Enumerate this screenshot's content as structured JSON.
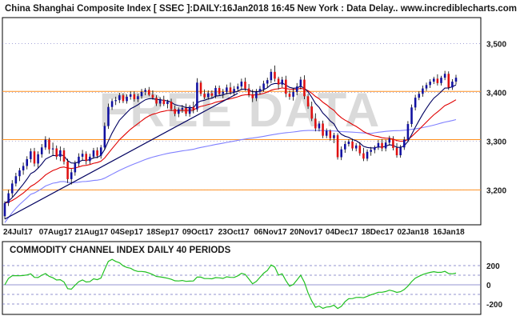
{
  "header": {
    "title": "China Shanghai Composite Index [ SSEC ]:DAILY:16Jan2018 16:45 New York : Data Delay..",
    "site": "www.incrediblecharts.com"
  },
  "watermark": "FREE DATA",
  "colors": {
    "up": "#1010a0",
    "down": "#e01010",
    "ma_fast": "#000060",
    "ma_mid": "#e00000",
    "ma_long": "#8080ff",
    "trendline": "#000060",
    "horizontal_lines": "#ff9020",
    "cci": "#20c020",
    "grid": "#7070c0"
  },
  "chart_data": [
    {
      "type": "candlestick",
      "title": "China Shanghai Composite Index [ SSEC ]:DAILY:16Jan2018 16:45 New York : Data Delay..",
      "x_tick_labels": [
        "24Jul17",
        "07Aug17",
        "21Aug17",
        "04Sep17",
        "18Sep17",
        "09Oct17",
        "23Oct17",
        "06Nov17",
        "20Nov17",
        "04Dec17",
        "18Dec17",
        "02Jan18",
        "16Jan18"
      ],
      "y_ticks": [
        3200,
        3300,
        3400,
        3500
      ],
      "y_tick_labels": [
        "3,200",
        "3,300",
        "3,400",
        "3,500"
      ],
      "ylim": [
        3130,
        3550
      ],
      "horizontal_lines": [
        3200,
        3303,
        3402
      ],
      "trendline": {
        "from": {
          "bar": 0,
          "value": 3140
        },
        "to": {
          "bar": 63,
          "value": 3398
        }
      },
      "moving_averages": [
        "fast",
        "mid",
        "long"
      ],
      "bar_count": 123,
      "ohlc": [
        [
          3146,
          3177,
          3140,
          3173
        ],
        [
          3173,
          3200,
          3167,
          3193
        ],
        [
          3193,
          3220,
          3186,
          3213
        ],
        [
          3213,
          3235,
          3207,
          3228
        ],
        [
          3228,
          3245,
          3218,
          3240
        ],
        [
          3240,
          3256,
          3231,
          3249
        ],
        [
          3249,
          3269,
          3242,
          3263
        ],
        [
          3263,
          3285,
          3256,
          3279
        ],
        [
          3279,
          3286,
          3248,
          3254
        ],
        [
          3254,
          3279,
          3245,
          3273
        ],
        [
          3273,
          3294,
          3266,
          3287
        ],
        [
          3287,
          3310,
          3282,
          3303
        ],
        [
          3303,
          3307,
          3274,
          3283
        ],
        [
          3283,
          3297,
          3270,
          3285
        ],
        [
          3285,
          3291,
          3262,
          3268
        ],
        [
          3268,
          3289,
          3259,
          3281
        ],
        [
          3281,
          3286,
          3252,
          3258
        ],
        [
          3258,
          3264,
          3214,
          3222
        ],
        [
          3222,
          3243,
          3211,
          3236
        ],
        [
          3236,
          3260,
          3229,
          3254
        ],
        [
          3254,
          3275,
          3248,
          3268
        ],
        [
          3268,
          3282,
          3260,
          3274
        ],
        [
          3274,
          3279,
          3252,
          3259
        ],
        [
          3259,
          3274,
          3253,
          3268
        ],
        [
          3268,
          3286,
          3264,
          3281
        ],
        [
          3281,
          3287,
          3265,
          3270
        ],
        [
          3270,
          3292,
          3264,
          3287
        ],
        [
          3287,
          3338,
          3282,
          3331
        ],
        [
          3331,
          3377,
          3325,
          3370
        ],
        [
          3370,
          3387,
          3364,
          3382
        ],
        [
          3382,
          3391,
          3374,
          3384
        ],
        [
          3384,
          3399,
          3378,
          3394
        ],
        [
          3394,
          3398,
          3378,
          3382
        ],
        [
          3382,
          3396,
          3377,
          3391
        ],
        [
          3391,
          3402,
          3385,
          3396
        ],
        [
          3396,
          3402,
          3381,
          3386
        ],
        [
          3386,
          3397,
          3380,
          3392
        ],
        [
          3392,
          3407,
          3387,
          3401
        ],
        [
          3401,
          3409,
          3394,
          3405
        ],
        [
          3405,
          3411,
          3392,
          3395
        ],
        [
          3395,
          3404,
          3385,
          3389
        ],
        [
          3389,
          3394,
          3372,
          3377
        ],
        [
          3377,
          3390,
          3371,
          3385
        ],
        [
          3385,
          3393,
          3372,
          3376
        ],
        [
          3376,
          3385,
          3367,
          3381
        ],
        [
          3381,
          3387,
          3362,
          3366
        ],
        [
          3366,
          3373,
          3351,
          3356
        ],
        [
          3356,
          3369,
          3349,
          3365
        ],
        [
          3365,
          3374,
          3358,
          3368
        ],
        [
          3368,
          3377,
          3351,
          3356
        ],
        [
          3356,
          3374,
          3350,
          3370
        ],
        [
          3370,
          3381,
          3357,
          3365
        ],
        [
          3365,
          3429,
          3360,
          3420
        ],
        [
          3420,
          3424,
          3392,
          3397
        ],
        [
          3397,
          3406,
          3386,
          3390
        ],
        [
          3390,
          3404,
          3385,
          3398
        ],
        [
          3398,
          3404,
          3388,
          3393
        ],
        [
          3393,
          3414,
          3388,
          3409
        ],
        [
          3409,
          3414,
          3394,
          3397
        ],
        [
          3397,
          3407,
          3388,
          3401
        ],
        [
          3401,
          3416,
          3396,
          3410
        ],
        [
          3410,
          3420,
          3395,
          3400
        ],
        [
          3400,
          3413,
          3393,
          3407
        ],
        [
          3407,
          3418,
          3401,
          3412
        ],
        [
          3412,
          3428,
          3405,
          3422
        ],
        [
          3422,
          3430,
          3403,
          3408
        ],
        [
          3408,
          3417,
          3390,
          3396
        ],
        [
          3396,
          3406,
          3380,
          3388
        ],
        [
          3388,
          3407,
          3382,
          3401
        ],
        [
          3401,
          3413,
          3396,
          3407
        ],
        [
          3407,
          3424,
          3401,
          3418
        ],
        [
          3418,
          3430,
          3410,
          3425
        ],
        [
          3425,
          3448,
          3419,
          3442
        ],
        [
          3442,
          3455,
          3422,
          3428
        ],
        [
          3428,
          3432,
          3406,
          3416
        ],
        [
          3416,
          3432,
          3410,
          3426
        ],
        [
          3426,
          3434,
          3390,
          3397
        ],
        [
          3397,
          3404,
          3385,
          3391
        ],
        [
          3391,
          3408,
          3383,
          3401
        ],
        [
          3401,
          3419,
          3394,
          3412
        ],
        [
          3412,
          3432,
          3406,
          3426
        ],
        [
          3426,
          3435,
          3386,
          3392
        ],
        [
          3392,
          3397,
          3366,
          3371
        ],
        [
          3371,
          3381,
          3341,
          3346
        ],
        [
          3346,
          3357,
          3320,
          3326
        ],
        [
          3326,
          3341,
          3320,
          3336
        ],
        [
          3336,
          3342,
          3306,
          3311
        ],
        [
          3311,
          3326,
          3306,
          3321
        ],
        [
          3321,
          3324,
          3301,
          3306
        ],
        [
          3306,
          3317,
          3296,
          3312
        ],
        [
          3312,
          3316,
          3262,
          3267
        ],
        [
          3267,
          3289,
          3261,
          3283
        ],
        [
          3283,
          3300,
          3276,
          3294
        ],
        [
          3294,
          3304,
          3289,
          3299
        ],
        [
          3299,
          3305,
          3280,
          3285
        ],
        [
          3285,
          3296,
          3279,
          3291
        ],
        [
          3291,
          3298,
          3270,
          3275
        ],
        [
          3275,
          3286,
          3259,
          3264
        ],
        [
          3264,
          3283,
          3259,
          3278
        ],
        [
          3278,
          3288,
          3270,
          3282
        ],
        [
          3282,
          3291,
          3275,
          3287
        ],
        [
          3287,
          3302,
          3282,
          3296
        ],
        [
          3296,
          3304,
          3279,
          3285
        ],
        [
          3285,
          3303,
          3279,
          3297
        ],
        [
          3297,
          3311,
          3291,
          3305
        ],
        [
          3305,
          3310,
          3281,
          3286
        ],
        [
          3286,
          3296,
          3266,
          3271
        ],
        [
          3271,
          3292,
          3266,
          3287
        ],
        [
          3287,
          3309,
          3282,
          3303
        ],
        [
          3303,
          3341,
          3298,
          3335
        ],
        [
          3335,
          3375,
          3329,
          3369
        ],
        [
          3369,
          3395,
          3363,
          3389
        ],
        [
          3389,
          3402,
          3384,
          3397
        ],
        [
          3397,
          3414,
          3391,
          3408
        ],
        [
          3408,
          3420,
          3403,
          3415
        ],
        [
          3415,
          3427,
          3409,
          3422
        ],
        [
          3422,
          3432,
          3417,
          3428
        ],
        [
          3428,
          3437,
          3414,
          3419
        ],
        [
          3419,
          3434,
          3414,
          3430
        ],
        [
          3430,
          3444,
          3425,
          3438
        ],
        [
          3438,
          3443,
          3405,
          3410
        ],
        [
          3410,
          3427,
          3405,
          3422
        ],
        [
          3422,
          3436,
          3416,
          3430
        ]
      ]
    },
    {
      "type": "line",
      "title": "COMMODITY CHANNEL INDEX DAILY 40 PERIODS",
      "y_ticks": [
        200,
        0,
        -200
      ],
      "y_tick_labels": [
        "200",
        "0",
        "-200"
      ],
      "dashed_levels": [
        200,
        100,
        -100,
        -200
      ],
      "ylim": [
        -300,
        300
      ]
    }
  ]
}
